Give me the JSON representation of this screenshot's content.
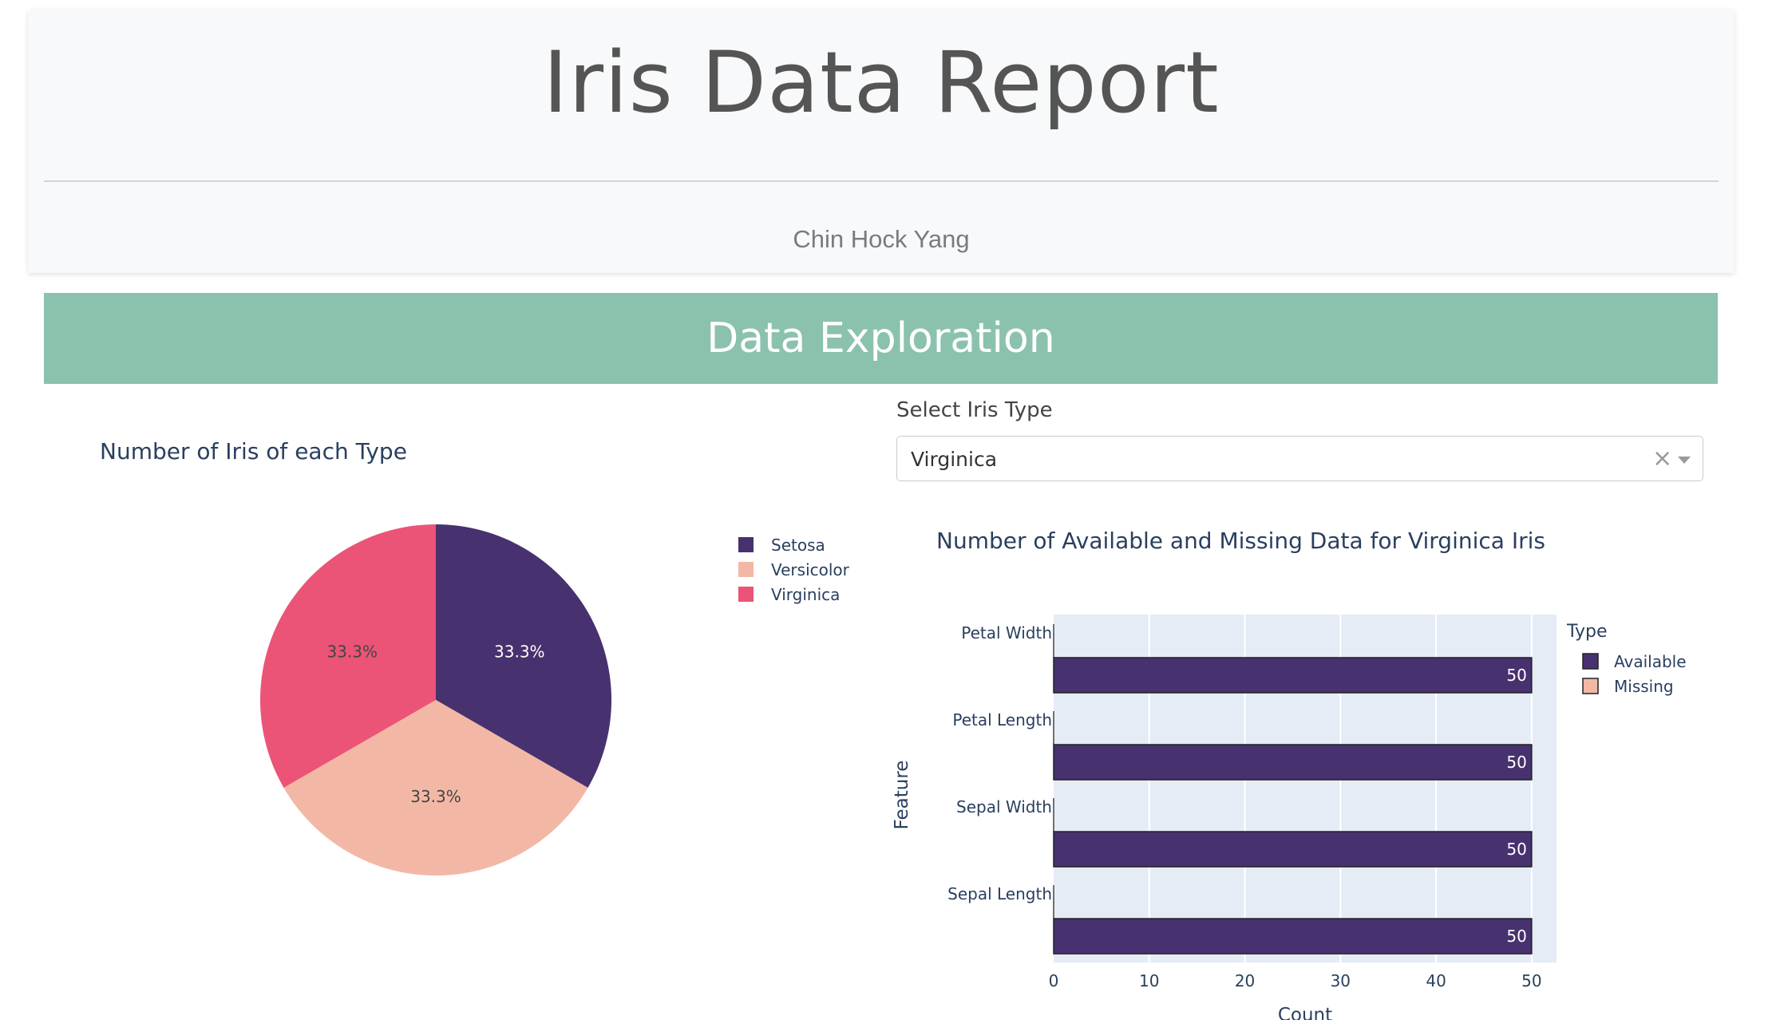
{
  "header": {
    "title": "Iris Data Report",
    "author": "Chin Hock Yang"
  },
  "section": {
    "title": "Data Exploration"
  },
  "dropdown": {
    "label": "Select Iris Type",
    "value": "Virginica",
    "clear_glyph": "×"
  },
  "colors": {
    "banner": "#8bc2ad",
    "setosa": "#47316f",
    "versicolor": "#f3b8a5",
    "virginica": "#ec5477",
    "available": "#47316f",
    "missing": "#f3b8a5",
    "plot_bg": "#e5ecf6"
  },
  "chart_data": [
    {
      "type": "pie",
      "title": "Number of Iris of each Type",
      "labels": [
        "Setosa",
        "Versicolor",
        "Virginica"
      ],
      "values": [
        33.3,
        33.3,
        33.3
      ],
      "text_labels": [
        "33.3%",
        "33.3%",
        "33.3%"
      ],
      "colors": [
        "#47316f",
        "#f3b8a5",
        "#ec5477"
      ],
      "legend_position": "top-right"
    },
    {
      "type": "bar",
      "orientation": "horizontal",
      "title": "Number of Available and Missing Data for Virginica Iris",
      "xlabel": "Count",
      "ylabel": "Feature",
      "categories": [
        "Sepal Length",
        "Sepal Width",
        "Petal Length",
        "Petal Width"
      ],
      "series": [
        {
          "name": "Available",
          "values": [
            50,
            50,
            50,
            50
          ],
          "color": "#47316f"
        },
        {
          "name": "Missing",
          "values": [
            0,
            0,
            0,
            0
          ],
          "color": "#f3b8a5"
        }
      ],
      "xlim": [
        0,
        52.6
      ],
      "xticks": [
        0,
        10,
        20,
        30,
        40,
        50
      ],
      "legend_title": "Type",
      "legend_position": "top-right",
      "grid": true
    }
  ]
}
